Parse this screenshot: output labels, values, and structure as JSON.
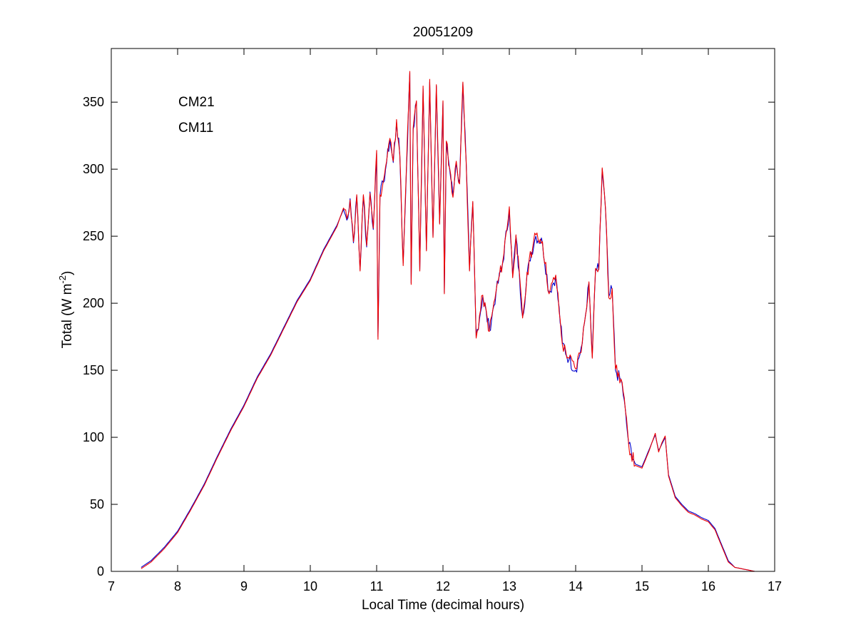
{
  "chart_data": {
    "type": "line",
    "title": "20051209",
    "xlabel": "Local Time (decimal hours)",
    "ylabel": {
      "base": "Total (W m",
      "sup": "-2",
      "close": ")"
    },
    "xlim": [
      7,
      17
    ],
    "ylim": [
      0,
      390
    ],
    "xticks": [
      7,
      8,
      9,
      10,
      11,
      12,
      13,
      14,
      15,
      16,
      17
    ],
    "yticks": [
      0,
      50,
      100,
      150,
      200,
      250,
      300,
      350
    ],
    "grid": false,
    "legend_position": "top-left",
    "colors": {
      "CM21": "#0000cc",
      "CM11": "#ee0000"
    },
    "series": [
      {
        "name": "CM21",
        "color": "#0000cc",
        "x": [
          7.45,
          7.6,
          7.8,
          8.0,
          8.2,
          8.4,
          8.6,
          8.8,
          9.0,
          9.2,
          9.4,
          9.6,
          9.8,
          10.0,
          10.2,
          10.4,
          10.5,
          10.55,
          10.6,
          10.65,
          10.7,
          10.75,
          10.8,
          10.85,
          10.9,
          10.95,
          11.0,
          11.02,
          11.05,
          11.1,
          11.15,
          11.2,
          11.25,
          11.3,
          11.35,
          11.4,
          11.45,
          11.5,
          11.52,
          11.55,
          11.6,
          11.65,
          11.7,
          11.75,
          11.8,
          11.85,
          11.9,
          11.95,
          12.0,
          12.02,
          12.05,
          12.1,
          12.15,
          12.2,
          12.25,
          12.3,
          12.35,
          12.4,
          12.45,
          12.5,
          12.6,
          12.7,
          12.8,
          12.9,
          13.0,
          13.05,
          13.1,
          13.2,
          13.3,
          13.4,
          13.5,
          13.6,
          13.7,
          13.8,
          13.9,
          14.0,
          14.1,
          14.2,
          14.25,
          14.3,
          14.35,
          14.4,
          14.45,
          14.5,
          14.55,
          14.6,
          14.7,
          14.8,
          14.9,
          15.0,
          15.1,
          15.2,
          15.25,
          15.3,
          15.35,
          15.4,
          15.5,
          15.6,
          15.7,
          15.8,
          15.9,
          16.0,
          16.1,
          16.2,
          16.3,
          16.4,
          16.5,
          16.6,
          16.7
        ],
        "y": [
          3,
          8,
          18,
          30,
          47,
          65,
          86,
          106,
          124,
          145,
          162,
          182,
          202,
          218,
          240,
          258,
          270,
          262,
          278,
          245,
          280,
          225,
          280,
          242,
          283,
          255,
          312,
          175,
          280,
          290,
          305,
          322,
          305,
          335,
          310,
          230,
          300,
          372,
          215,
          330,
          350,
          225,
          360,
          240,
          365,
          250,
          362,
          260,
          350,
          208,
          320,
          300,
          280,
          305,
          290,
          364,
          305,
          225,
          275,
          175,
          205,
          180,
          208,
          230,
          270,
          220,
          250,
          190,
          232,
          250,
          245,
          208,
          220,
          170,
          158,
          150,
          170,
          215,
          160,
          225,
          225,
          300,
          270,
          205,
          210,
          150,
          140,
          95,
          80,
          78,
          90,
          102,
          90,
          95,
          100,
          72,
          56,
          50,
          45,
          43,
          40,
          38,
          32,
          20,
          8,
          3,
          2,
          1,
          0
        ],
        "noise_seed": 7
      },
      {
        "name": "CM11",
        "color": "#ee0000",
        "x": [
          7.45,
          7.6,
          7.8,
          8.0,
          8.2,
          8.4,
          8.6,
          8.8,
          9.0,
          9.2,
          9.4,
          9.6,
          9.8,
          10.0,
          10.2,
          10.4,
          10.5,
          10.55,
          10.6,
          10.65,
          10.7,
          10.75,
          10.8,
          10.85,
          10.9,
          10.95,
          11.0,
          11.02,
          11.05,
          11.1,
          11.15,
          11.2,
          11.25,
          11.3,
          11.35,
          11.4,
          11.45,
          11.5,
          11.52,
          11.55,
          11.6,
          11.65,
          11.7,
          11.75,
          11.8,
          11.85,
          11.9,
          11.95,
          12.0,
          12.02,
          12.05,
          12.1,
          12.15,
          12.2,
          12.25,
          12.3,
          12.35,
          12.4,
          12.45,
          12.5,
          12.6,
          12.7,
          12.8,
          12.9,
          13.0,
          13.05,
          13.1,
          13.2,
          13.3,
          13.4,
          13.5,
          13.6,
          13.7,
          13.8,
          13.9,
          14.0,
          14.1,
          14.2,
          14.25,
          14.3,
          14.35,
          14.4,
          14.45,
          14.5,
          14.55,
          14.6,
          14.7,
          14.8,
          14.9,
          15.0,
          15.1,
          15.2,
          15.25,
          15.3,
          15.35,
          15.4,
          15.5,
          15.6,
          15.7,
          15.8,
          15.9,
          16.0,
          16.1,
          16.2,
          16.3,
          16.4,
          16.5,
          16.6,
          16.7
        ],
        "y": [
          2,
          7,
          17,
          29,
          46,
          64,
          85,
          105,
          123,
          144,
          161,
          181,
          201,
          217,
          239,
          257,
          271,
          263,
          277,
          246,
          281,
          224,
          281,
          243,
          282,
          256,
          314,
          173,
          281,
          291,
          306,
          323,
          306,
          337,
          311,
          228,
          302,
          373,
          214,
          331,
          351,
          224,
          362,
          239,
          367,
          249,
          363,
          259,
          351,
          207,
          321,
          301,
          279,
          306,
          289,
          365,
          306,
          224,
          276,
          174,
          206,
          179,
          209,
          231,
          272,
          219,
          251,
          189,
          233,
          251,
          246,
          207,
          221,
          169,
          159,
          151,
          171,
          216,
          159,
          226,
          226,
          301,
          271,
          204,
          211,
          151,
          141,
          94,
          79,
          77,
          89,
          103,
          89,
          96,
          101,
          71,
          55,
          49,
          44,
          42,
          39,
          37,
          31,
          19,
          7,
          3,
          2,
          1,
          0
        ],
        "noise_seed": 11
      }
    ]
  }
}
